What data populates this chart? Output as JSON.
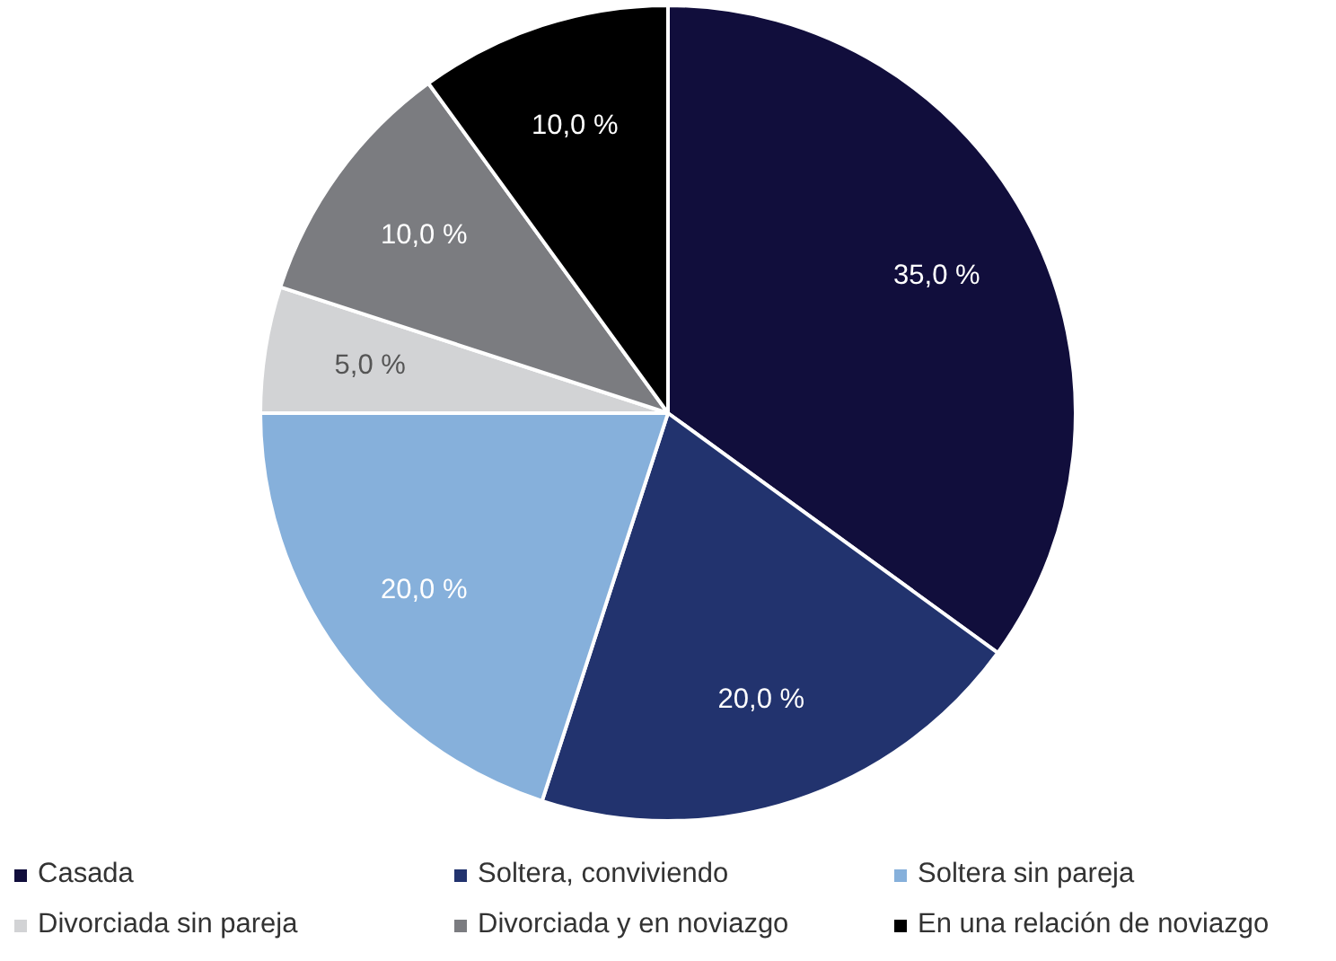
{
  "chart_data": {
    "type": "pie",
    "categories": [
      "Casada",
      "Soltera, conviviendo",
      "Soltera sin pareja",
      "Divorciada sin pareja",
      "Divorciada y en noviazgo",
      "En una relación de noviazgo"
    ],
    "values": [
      35,
      20,
      20,
      5,
      10,
      10
    ],
    "colors": [
      "#110e3c",
      "#22336e",
      "#86b0db",
      "#d2d3d5",
      "#7b7c80",
      "#000000"
    ],
    "value_labels": [
      "35,0 %",
      "20,0 %",
      "20,0 %",
      "5,0 %",
      "10,0 %",
      "10,0 %"
    ],
    "legend": "bottom"
  }
}
